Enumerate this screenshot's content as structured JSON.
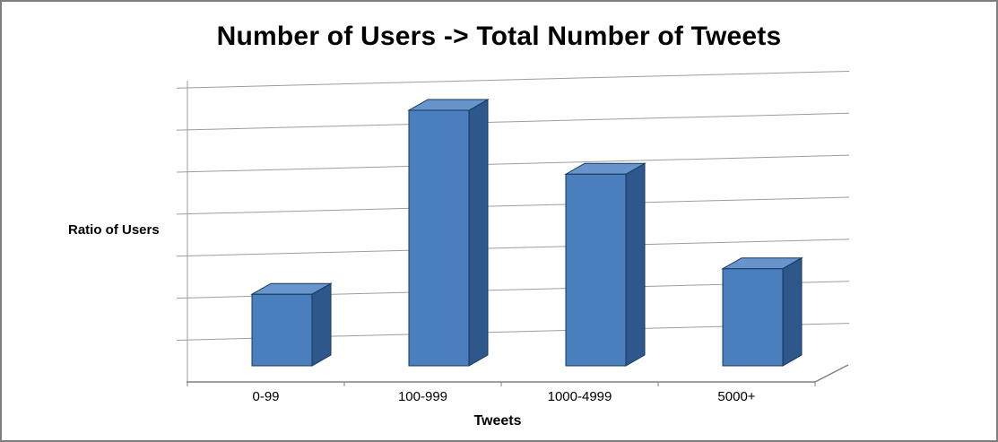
{
  "chart_data": {
    "type": "bar",
    "style": "3d-column",
    "title": "Number of Users -> Total Number of Tweets",
    "xlabel": "Tweets",
    "ylabel": "Ratio of Users",
    "categories": [
      "0-99",
      "100-999",
      "1000-4999",
      "5000+"
    ],
    "values": [
      0.28,
      1.0,
      0.75,
      0.38
    ],
    "value_scale": "relative to tallest bar; y-axis shows tick marks but no numeric labels",
    "ylim": [
      0,
      1.15
    ],
    "gridline_count": 8,
    "legend": "none",
    "colors": {
      "bar_front": "#4a7ebc",
      "bar_top": "#6795cb",
      "bar_side": "#2e578c",
      "bar_outline": "#17375e",
      "gridline": "#9d9d9d",
      "axis": "#808080",
      "background": "#ffffff",
      "frame_border": "#7e7e7e"
    }
  }
}
